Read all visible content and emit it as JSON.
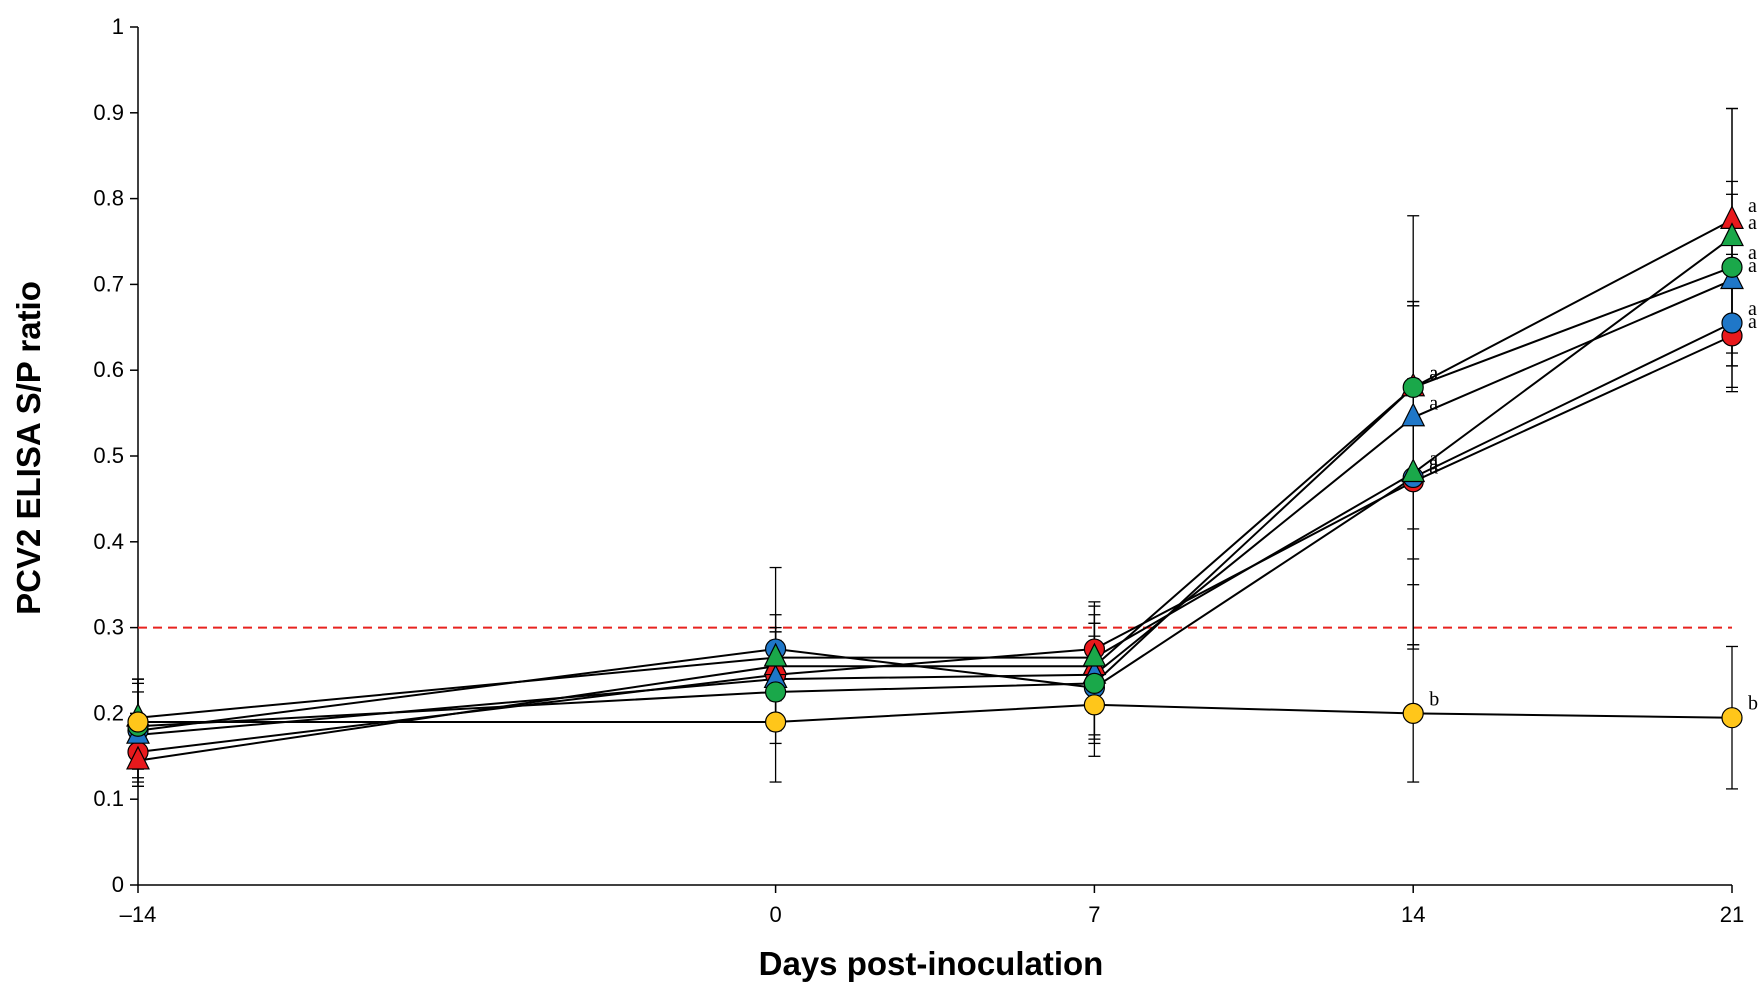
{
  "chart_data": {
    "type": "line",
    "title": "",
    "xlabel": "Days post-inoculation",
    "ylabel": "PCV2 ELISA S/P ratio",
    "x_ticks": [
      {
        "value": -14,
        "label": "–14"
      },
      {
        "value": 0,
        "label": "0"
      },
      {
        "value": 7,
        "label": "7"
      },
      {
        "value": 14,
        "label": "14"
      },
      {
        "value": 21,
        "label": "21"
      }
    ],
    "y_ticks": [
      {
        "value": 0,
        "label": "0"
      },
      {
        "value": 0.1,
        "label": "0.1"
      },
      {
        "value": 0.2,
        "label": "0.2"
      },
      {
        "value": 0.3,
        "label": "0.3"
      },
      {
        "value": 0.4,
        "label": "0.4"
      },
      {
        "value": 0.5,
        "label": "0.5"
      },
      {
        "value": 0.6,
        "label": "0.6"
      },
      {
        "value": 0.7,
        "label": "0.7"
      },
      {
        "value": 0.8,
        "label": "0.8"
      },
      {
        "value": 0.9,
        "label": "0.9"
      },
      {
        "value": 1,
        "label": "1"
      }
    ],
    "xlim": [
      -14,
      21
    ],
    "ylim": [
      0,
      1
    ],
    "grid": false,
    "legend": "none",
    "threshold": {
      "value": 0.3,
      "color": "#e8231f",
      "style": "dashed"
    },
    "x": [
      -14,
      0,
      7,
      14,
      21
    ],
    "series": [
      {
        "marker": "circle",
        "color": "#e8191c",
        "values": [
          0.155,
          0.245,
          0.275,
          0.47,
          0.64
        ],
        "error": [
          0.04,
          0.05,
          0.05,
          0.12,
          0.06
        ],
        "labels": [
          "",
          "",
          "",
          "a",
          "a"
        ]
      },
      {
        "marker": "triangle",
        "color": "#e8191c",
        "values": [
          0.145,
          0.255,
          0.255,
          0.58,
          0.775
        ],
        "error": [
          0.03,
          0.04,
          0.05,
          0.2,
          0.13
        ],
        "labels": [
          "",
          "",
          "",
          "a",
          "a"
        ]
      },
      {
        "marker": "circle",
        "color": "#1f77c8",
        "values": [
          0.18,
          0.275,
          0.23,
          0.475,
          0.655
        ],
        "error": [
          0.06,
          0.095,
          0.06,
          0.2,
          0.08
        ],
        "labels": [
          "",
          "",
          "",
          "a",
          "a"
        ]
      },
      {
        "marker": "triangle",
        "color": "#1f77c8",
        "values": [
          0.175,
          0.24,
          0.245,
          0.545,
          0.705
        ],
        "error": [
          0.05,
          0.06,
          0.07,
          0.13,
          0.1
        ],
        "labels": [
          "",
          "",
          "",
          "a",
          "a"
        ]
      },
      {
        "marker": "circle",
        "color": "#1aa84a",
        "values": [
          0.185,
          0.225,
          0.235,
          0.58,
          0.72
        ],
        "error": [
          0.05,
          0.06,
          0.07,
          0.1,
          0.1
        ],
        "labels": [
          "",
          "",
          "",
          "a",
          "a"
        ]
      },
      {
        "marker": "triangle",
        "color": "#1aa84a",
        "values": [
          0.195,
          0.265,
          0.265,
          0.48,
          0.755
        ],
        "error": [
          0.045,
          0.05,
          0.065,
          0.2,
          0.15
        ],
        "labels": [
          "",
          "",
          "",
          "a",
          "a"
        ]
      },
      {
        "marker": "circle",
        "color": "#ffc61a",
        "values": [
          0.19,
          0.19,
          0.21,
          0.2,
          0.195
        ],
        "error": [
          0.05,
          0.07,
          0.06,
          0.08,
          0.083
        ],
        "labels": [
          "",
          "",
          "",
          "b",
          "b"
        ]
      }
    ]
  }
}
